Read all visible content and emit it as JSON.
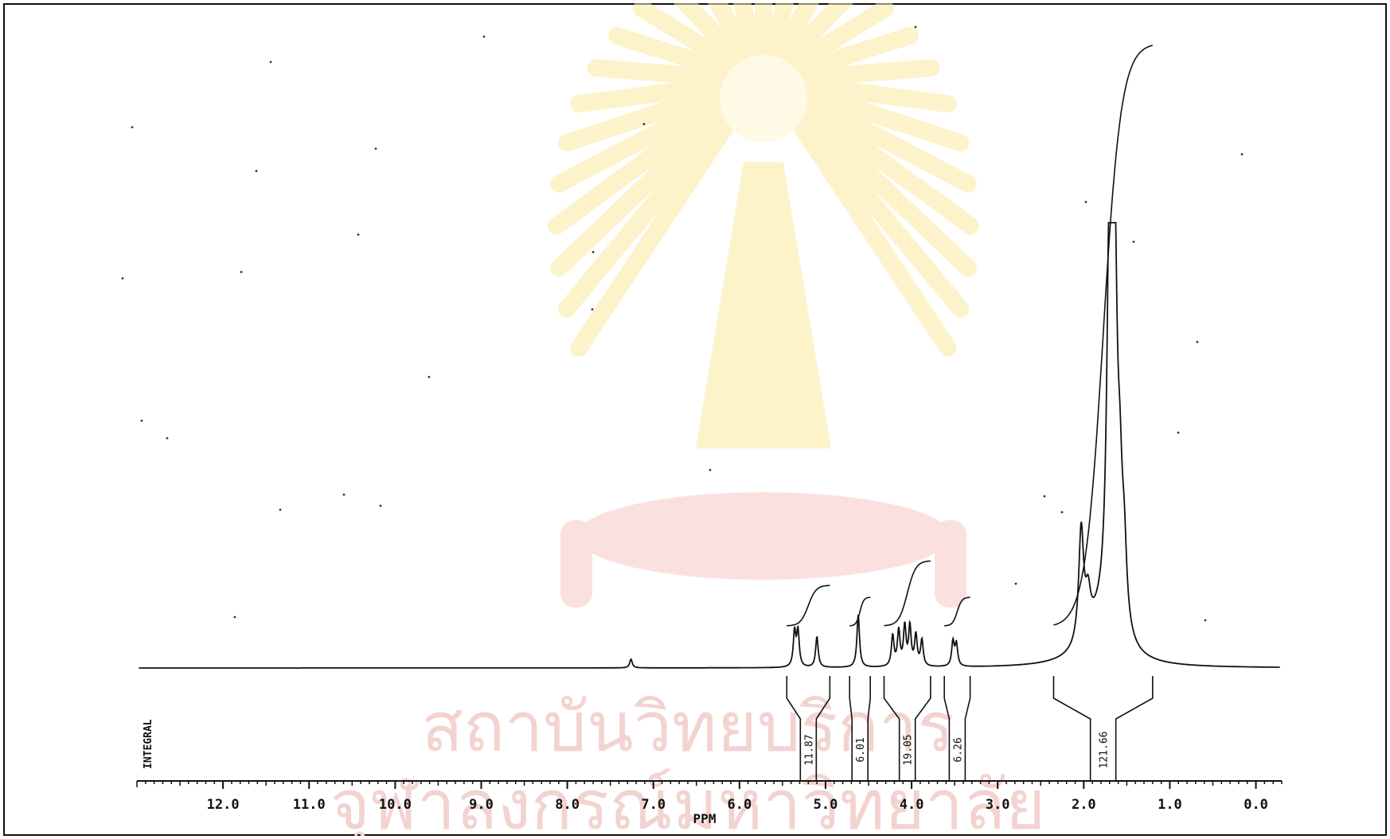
{
  "chart_data": {
    "type": "line",
    "title": "",
    "xlabel": "PPM",
    "ylabel": "",
    "xlim": [
      13.0,
      -0.3
    ],
    "x_reversed": true,
    "ticks": [
      {
        "value": 12.0,
        "label": "12.0"
      },
      {
        "value": 11.0,
        "label": "11.0"
      },
      {
        "value": 10.0,
        "label": "10.0"
      },
      {
        "value": 9.0,
        "label": "9.0"
      },
      {
        "value": 8.0,
        "label": "8.0"
      },
      {
        "value": 7.0,
        "label": "7.0"
      },
      {
        "value": 6.0,
        "label": "6.0"
      },
      {
        "value": 5.0,
        "label": "5.0"
      },
      {
        "value": 4.0,
        "label": "4.0"
      },
      {
        "value": 3.0,
        "label": "3.0"
      },
      {
        "value": 2.0,
        "label": "2.0"
      },
      {
        "value": 1.0,
        "label": "1.0"
      },
      {
        "value": 0.0,
        "label": "0.0"
      }
    ],
    "peaks": [
      {
        "ppm": 7.26,
        "height": 0.01
      },
      {
        "ppm": 5.36,
        "height": 0.04
      },
      {
        "ppm": 5.32,
        "height": 0.04
      },
      {
        "ppm": 5.1,
        "height": 0.035
      },
      {
        "ppm": 4.62,
        "height": 0.06
      },
      {
        "ppm": 4.22,
        "height": 0.035
      },
      {
        "ppm": 4.15,
        "height": 0.04
      },
      {
        "ppm": 4.08,
        "height": 0.045
      },
      {
        "ppm": 4.02,
        "height": 0.045
      },
      {
        "ppm": 3.95,
        "height": 0.035
      },
      {
        "ppm": 3.88,
        "height": 0.03
      },
      {
        "ppm": 3.52,
        "height": 0.028
      },
      {
        "ppm": 3.48,
        "height": 0.025
      },
      {
        "ppm": 2.03,
        "height": 0.13
      },
      {
        "ppm": 1.95,
        "height": 0.04
      },
      {
        "ppm": 1.7,
        "height": 0.45
      },
      {
        "ppm": 1.64,
        "height": 0.38
      },
      {
        "ppm": 1.58,
        "height": 0.12
      },
      {
        "ppm": 1.53,
        "height": 0.08
      }
    ],
    "integral_label": "INTEGRAL",
    "integrals": [
      {
        "label": "11.87",
        "from": 5.45,
        "to": 4.95,
        "value": 11.87
      },
      {
        "label": "6.01",
        "from": 4.72,
        "to": 4.48,
        "value": 6.01
      },
      {
        "label": "19.05",
        "from": 4.32,
        "to": 3.78,
        "value": 19.05
      },
      {
        "label": "6.26",
        "from": 3.62,
        "to": 3.32,
        "value": 6.26
      },
      {
        "label": "121.66",
        "from": 2.35,
        "to": 1.2,
        "value": 121.66
      }
    ]
  },
  "colors": {
    "ink": "#111111",
    "watermark": "#f3d3d0"
  },
  "watermark": {
    "line1": "สถาบันวิทยบริการ",
    "line2": "จุฬาลงกรณ์มหาวิทยาลัย"
  }
}
